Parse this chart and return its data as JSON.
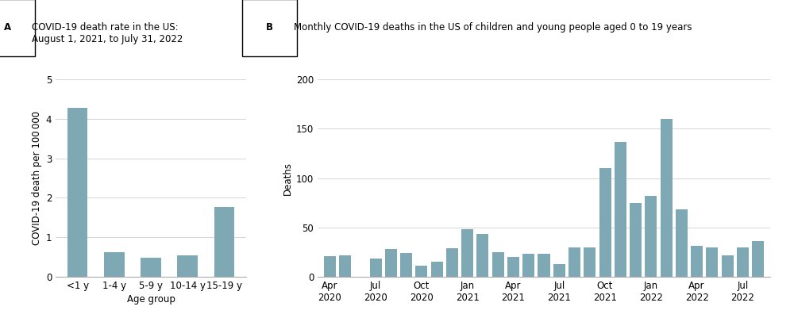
{
  "panel_a": {
    "title_label": "A",
    "title_text": "COVID-19 death rate in the US:\nAugust 1, 2021, to July 31, 2022",
    "categories": [
      "<1 y",
      "1-4 y",
      "5-9 y",
      "10-14 y",
      "15-19 y"
    ],
    "values": [
      4.28,
      0.62,
      0.47,
      0.54,
      1.76
    ],
    "ylabel": "COVID-19 death per 100 000",
    "xlabel": "Age group",
    "ylim": [
      0,
      5
    ],
    "yticks": [
      0,
      1,
      2,
      3,
      4,
      5
    ]
  },
  "panel_b": {
    "title_label": "B",
    "title_text": "Monthly COVID-19 deaths in the US of children and young people aged 0 to 19 years",
    "bar_positions": [
      0,
      1,
      3,
      4,
      5,
      6,
      7,
      8,
      9,
      10,
      11,
      12,
      13,
      14,
      15,
      16,
      17,
      18,
      19,
      20,
      21,
      22,
      23,
      24,
      25,
      26,
      27,
      28
    ],
    "bar_heights": [
      21,
      22,
      18,
      28,
      24,
      11,
      15,
      29,
      48,
      43,
      25,
      20,
      23,
      23,
      13,
      30,
      30,
      110,
      137,
      75,
      82,
      160,
      68,
      31,
      30,
      22,
      30,
      36
    ],
    "xtick_positions": [
      0,
      3,
      6,
      9,
      12,
      15,
      18,
      21,
      24,
      27
    ],
    "xtick_labels": [
      "Apr\n2020",
      "Jul\n2020",
      "Oct\n2020",
      "Jan\n2021",
      "Apr\n2021",
      "Jul\n2021",
      "Oct\n2021",
      "Jan\n2022",
      "Apr\n2022",
      "Jul\n2022"
    ],
    "ylabel": "Deaths",
    "ylim": [
      0,
      200
    ],
    "yticks": [
      0,
      50,
      100,
      150,
      200
    ],
    "xlim": [
      -0.8,
      28.8
    ]
  },
  "bar_color": "#7fa8b5",
  "grid_color": "#d0d0d0",
  "spine_color": "#aaaaaa",
  "background_color": "#ffffff",
  "font_size": 8.5,
  "title_font_size": 8.5,
  "label_font_size": 9
}
